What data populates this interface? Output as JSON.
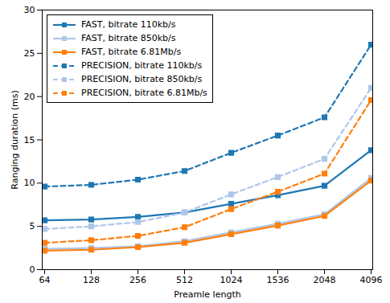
{
  "chart_data": {
    "type": "line",
    "x_label": "Preamle length",
    "y_label": "Ranging duration (ms)",
    "categories": [
      "64",
      "128",
      "256",
      "512",
      "1024",
      "1536",
      "2048",
      "4096"
    ],
    "ylim": [
      0,
      30
    ],
    "yticks": [
      0,
      5,
      10,
      15,
      20,
      25,
      30
    ],
    "grid": false,
    "legend": "upper left",
    "series": [
      {
        "name": "FAST, bitrate 110kb/s",
        "color": "#1f77b4",
        "marker": "square",
        "line_style": "solid",
        "values": [
          5.7,
          5.8,
          6.1,
          6.6,
          7.6,
          8.6,
          9.7,
          13.8
        ]
      },
      {
        "name": "FAST, bitrate 850kb/s",
        "color": "#aec7e8",
        "marker": "square",
        "line_style": "solid",
        "values": [
          2.4,
          2.5,
          2.7,
          3.3,
          4.3,
          5.3,
          6.4,
          10.6
        ]
      },
      {
        "name": "FAST, bitrate 6.81Mb/s",
        "color": "#ff7f0e",
        "marker": "square",
        "line_style": "solid",
        "values": [
          2.2,
          2.3,
          2.6,
          3.1,
          4.1,
          5.1,
          6.2,
          10.3
        ]
      },
      {
        "name": "PRECISION, bitrate 110kb/s",
        "color": "#1f77b4",
        "marker": "square",
        "line_style": "dashed",
        "values": [
          9.6,
          9.8,
          10.4,
          11.4,
          13.5,
          15.5,
          17.6,
          26.0
        ]
      },
      {
        "name": "PRECISION, bitrate 850kb/s",
        "color": "#aec7e8",
        "marker": "square",
        "line_style": "dashed",
        "values": [
          4.7,
          5.0,
          5.5,
          6.6,
          8.7,
          10.7,
          12.8,
          21.0
        ]
      },
      {
        "name": "PRECISION, bitrate 6.81Mb/s",
        "color": "#ff7f0e",
        "marker": "square",
        "line_style": "dashed",
        "values": [
          3.1,
          3.4,
          3.9,
          4.9,
          7.0,
          9.0,
          11.1,
          19.6
        ]
      }
    ]
  }
}
